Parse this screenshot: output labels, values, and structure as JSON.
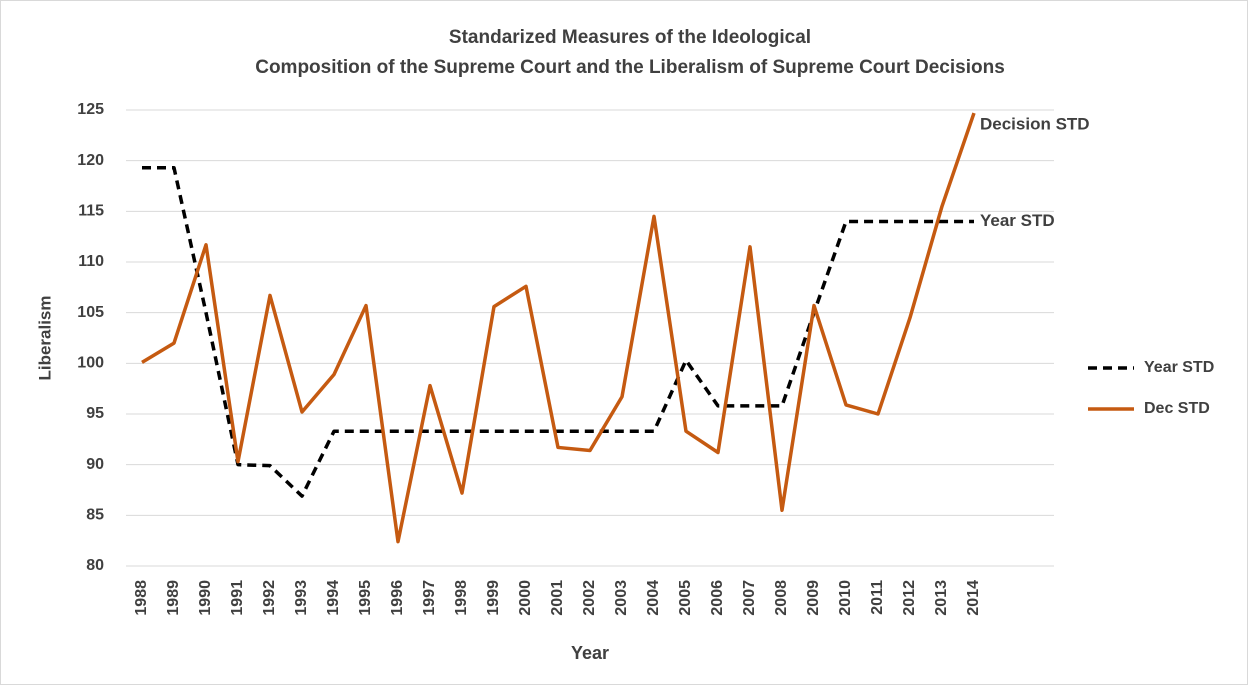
{
  "chart_data": {
    "type": "line",
    "title": [
      "Standarized Measures of the Ideological",
      "Composition of the Supreme Court and the Liberalism of Supreme Court Decisions"
    ],
    "x_label": "Year",
    "y_label": "Liberalism",
    "categories": [
      "1988",
      "1989",
      "1990",
      "1991",
      "1992",
      "1993",
      "1994",
      "1995",
      "1996",
      "1997",
      "1998",
      "1999",
      "2000",
      "2001",
      "2002",
      "2003",
      "2004",
      "2005",
      "2006",
      "2007",
      "2008",
      "2009",
      "2010",
      "2011",
      "2012",
      "2013",
      "2014",
      null,
      null
    ],
    "series": [
      {
        "name": "Year STD",
        "color": "#000000",
        "dashed": true,
        "values": [
          119.3,
          119.3,
          105,
          90,
          89.9,
          86.9,
          93.3,
          93.3,
          93.3,
          93.3,
          93.3,
          93.3,
          93.3,
          93.3,
          93.3,
          93.3,
          93.3,
          100.3,
          95.8,
          95.8,
          95.8,
          105,
          114,
          114,
          114,
          114,
          114,
          null,
          null
        ]
      },
      {
        "name": "Dec STD",
        "color": "#c55a11",
        "dashed": false,
        "values": [
          100.1,
          102,
          111.7,
          90.3,
          106.7,
          95.2,
          98.9,
          105.7,
          82.4,
          97.8,
          87.2,
          105.6,
          107.6,
          91.7,
          91.4,
          96.7,
          114.5,
          93.3,
          91.2,
          111.5,
          85.5,
          105.7,
          95.9,
          95,
          104.5,
          115.5,
          124.7,
          null,
          null
        ]
      }
    ],
    "annotations": [
      {
        "text": "Decision STD",
        "series": 1
      },
      {
        "text": "Year STD",
        "series": 0
      }
    ],
    "ylim": [
      80,
      125
    ],
    "yticks": [
      80,
      85,
      90,
      95,
      100,
      105,
      110,
      115,
      120,
      125
    ],
    "grid": true,
    "legend": "right"
  }
}
